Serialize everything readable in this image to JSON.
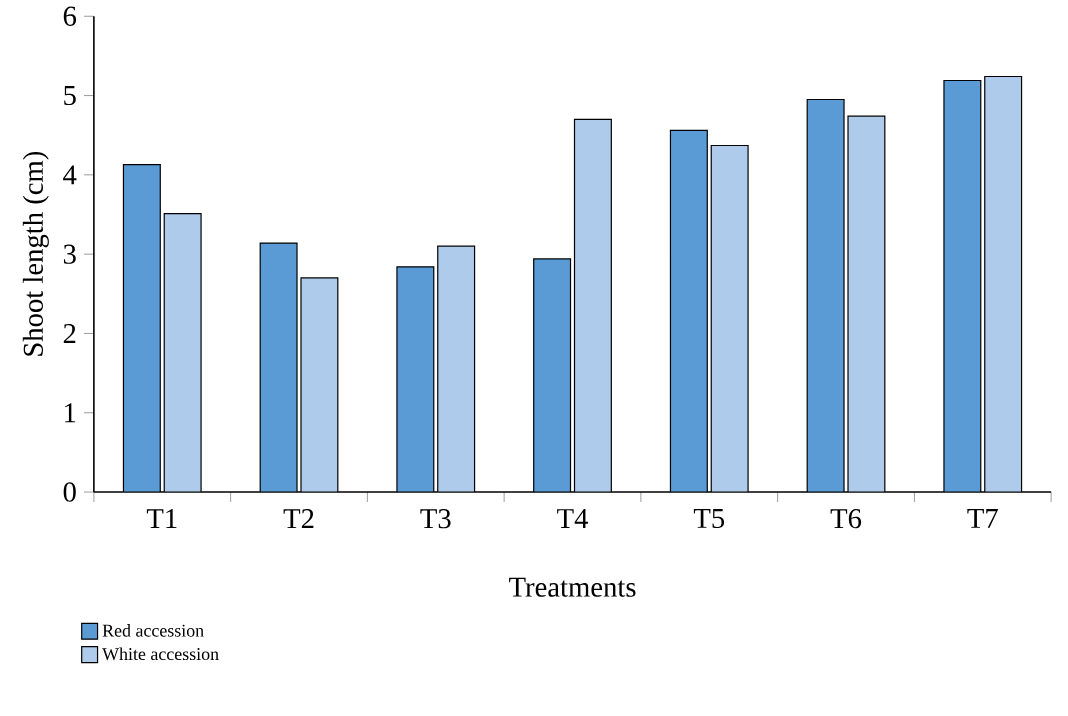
{
  "chart_data": {
    "type": "bar",
    "xlabel": "Treatments",
    "ylabel": "Shoot length (cm)",
    "categories": [
      "T1",
      "T2",
      "T3",
      "T4",
      "T5",
      "T6",
      "T7"
    ],
    "series": [
      {
        "name": "Red accession",
        "color": "#5b9bd5",
        "values": [
          4.13,
          3.14,
          2.84,
          2.94,
          4.56,
          4.95,
          5.19
        ]
      },
      {
        "name": "White accession",
        "color": "#aecbeb",
        "values": [
          3.51,
          2.7,
          3.1,
          4.7,
          4.37,
          4.74,
          5.24
        ]
      }
    ],
    "ylim": [
      0,
      6
    ],
    "yticks": [
      0,
      1,
      2,
      3,
      4,
      5,
      6
    ],
    "grid": false,
    "legend": "bottom left"
  }
}
